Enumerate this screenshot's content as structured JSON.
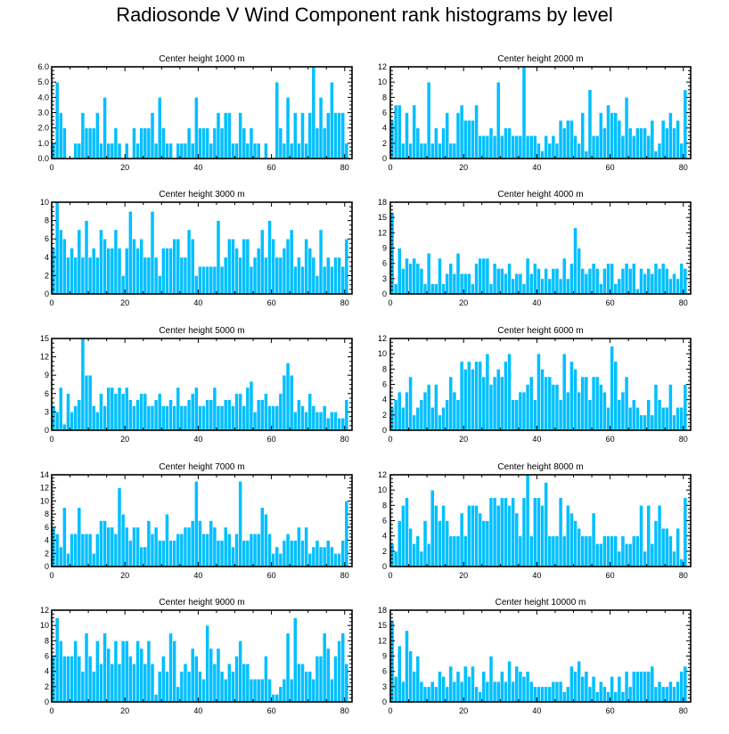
{
  "figure": {
    "title": "Radiosonde V Wind Component rank histograms by level"
  },
  "chart_data": [
    {
      "type": "bar",
      "title": "Center height 1000 m",
      "xlim": [
        0,
        82
      ],
      "ylim": [
        0,
        6
      ],
      "xticks": [
        "0",
        "20",
        "40",
        "60",
        "80"
      ],
      "yticks": [
        "0.0",
        "1.0",
        "2.0",
        "3.0",
        "4.0",
        "5.0",
        "6.0"
      ],
      "values": [
        1,
        5,
        3,
        2,
        0,
        0,
        1,
        1,
        3,
        2,
        2,
        2,
        3,
        1,
        4,
        1,
        1,
        2,
        1,
        0,
        1,
        0,
        2,
        1,
        2,
        2,
        2,
        3,
        1,
        4,
        2,
        1,
        1,
        0,
        1,
        1,
        1,
        2,
        1,
        4,
        2,
        2,
        2,
        1,
        2,
        3,
        2,
        3,
        3,
        1,
        1,
        3,
        2,
        1,
        2,
        1,
        1,
        0,
        1,
        0,
        0,
        5,
        2,
        1,
        4,
        1,
        3,
        1,
        3,
        1,
        3,
        6,
        2,
        4,
        2,
        3,
        5,
        3,
        3,
        3,
        1
      ]
    },
    {
      "type": "bar",
      "title": "Center height 2000 m",
      "xlim": [
        0,
        82
      ],
      "ylim": [
        0,
        12
      ],
      "xticks": [
        "0",
        "20",
        "40",
        "60",
        "80"
      ],
      "yticks": [
        "0",
        "2",
        "4",
        "6",
        "8",
        "10",
        "12"
      ],
      "values": [
        5,
        7,
        7,
        2,
        6,
        2,
        7,
        4,
        2,
        2,
        10,
        2,
        4,
        2,
        4,
        6,
        2,
        2,
        6,
        7,
        5,
        5,
        5,
        7,
        3,
        3,
        3,
        4,
        3,
        10,
        3,
        4,
        4,
        3,
        3,
        3,
        12,
        3,
        3,
        3,
        2,
        1,
        3,
        2,
        3,
        2,
        5,
        4,
        5,
        5,
        3,
        2,
        6,
        1,
        9,
        3,
        3,
        6,
        4,
        7,
        6,
        6,
        5,
        3,
        8,
        4,
        3,
        4,
        4,
        4,
        3,
        5,
        1,
        2,
        5,
        4,
        6,
        4,
        5,
        2,
        9
      ]
    },
    {
      "type": "bar",
      "title": "Center height 3000 m",
      "xlim": [
        0,
        82
      ],
      "ylim": [
        0,
        10
      ],
      "xticks": [
        "0",
        "20",
        "40",
        "60",
        "80"
      ],
      "yticks": [
        "0",
        "2",
        "4",
        "6",
        "8",
        "10"
      ],
      "values": [
        5,
        10,
        7,
        6,
        4,
        5,
        4,
        7,
        4,
        8,
        4,
        5,
        4,
        7,
        6,
        5,
        5,
        7,
        5,
        2,
        5,
        9,
        6,
        5,
        6,
        4,
        4,
        9,
        4,
        2,
        5,
        5,
        5,
        6,
        6,
        4,
        4,
        7,
        6,
        2,
        3,
        3,
        3,
        3,
        3,
        8,
        3,
        4,
        6,
        6,
        5,
        4,
        6,
        6,
        3,
        4,
        5,
        7,
        4,
        8,
        6,
        4,
        4,
        5,
        6,
        7,
        3,
        4,
        3,
        6,
        5,
        4,
        2,
        7,
        3,
        4,
        3,
        4,
        4,
        3,
        6
      ]
    },
    {
      "type": "bar",
      "title": "Center height 4000 m",
      "xlim": [
        0,
        82
      ],
      "ylim": [
        0,
        18
      ],
      "xticks": [
        "0",
        "20",
        "40",
        "60",
        "80"
      ],
      "yticks": [
        "0",
        "3",
        "6",
        "9",
        "12",
        "15",
        "18"
      ],
      "values": [
        16,
        2,
        9,
        5,
        7,
        6,
        7,
        6,
        5,
        2,
        8,
        2,
        2,
        7,
        2,
        4,
        6,
        4,
        8,
        4,
        4,
        4,
        2,
        6,
        7,
        7,
        7,
        2,
        6,
        5,
        5,
        4,
        6,
        3,
        4,
        4,
        2,
        7,
        4,
        6,
        5,
        3,
        5,
        3,
        5,
        5,
        3,
        7,
        3,
        6,
        13,
        9,
        5,
        4,
        5,
        6,
        5,
        2,
        5,
        6,
        6,
        2,
        3,
        5,
        6,
        5,
        6,
        1,
        5,
        4,
        5,
        4,
        6,
        5,
        6,
        5,
        3,
        4,
        3,
        6,
        5
      ]
    },
    {
      "type": "bar",
      "title": "Center height 5000 m",
      "xlim": [
        0,
        82
      ],
      "ylim": [
        0,
        15
      ],
      "xticks": [
        "0",
        "20",
        "40",
        "60",
        "80"
      ],
      "yticks": [
        "0",
        "3",
        "6",
        "9",
        "12",
        "15"
      ],
      "values": [
        4,
        3,
        7,
        1,
        6,
        3,
        4,
        5,
        15,
        9,
        9,
        4,
        3,
        6,
        4,
        7,
        7,
        6,
        7,
        6,
        7,
        5,
        4,
        5,
        6,
        6,
        4,
        4,
        5,
        6,
        4,
        4,
        5,
        4,
        7,
        4,
        4,
        5,
        6,
        7,
        4,
        4,
        5,
        5,
        7,
        4,
        4,
        5,
        5,
        4,
        6,
        6,
        4,
        7,
        8,
        3,
        5,
        5,
        6,
        4,
        4,
        4,
        6,
        9,
        11,
        9,
        3,
        5,
        4,
        3,
        6,
        4,
        3,
        3,
        4,
        2,
        3,
        3,
        2,
        2,
        5
      ]
    },
    {
      "type": "bar",
      "title": "Center height 6000 m",
      "xlim": [
        0,
        82
      ],
      "ylim": [
        0,
        12
      ],
      "xticks": [
        "0",
        "20",
        "40",
        "60",
        "80"
      ],
      "yticks": [
        "0",
        "2",
        "4",
        "6",
        "8",
        "10",
        "12"
      ],
      "values": [
        3,
        4,
        5,
        3,
        5,
        7,
        2,
        3,
        4,
        5,
        6,
        3,
        6,
        2,
        3,
        4,
        7,
        5,
        4,
        9,
        8,
        9,
        8,
        9,
        9,
        7,
        10,
        6,
        7,
        8,
        7,
        9,
        10,
        4,
        4,
        5,
        5,
        6,
        7,
        4,
        10,
        8,
        7,
        7,
        6,
        6,
        4,
        10,
        5,
        9,
        8,
        5,
        7,
        7,
        4,
        7,
        7,
        6,
        5,
        3,
        11,
        9,
        4,
        5,
        7,
        3,
        4,
        3,
        2,
        2,
        4,
        2,
        6,
        4,
        3,
        3,
        6,
        2,
        3,
        3,
        6
      ]
    },
    {
      "type": "bar",
      "title": "Center height 7000 m",
      "xlim": [
        0,
        82
      ],
      "ylim": [
        0,
        14
      ],
      "xticks": [
        "0",
        "20",
        "40",
        "60",
        "80"
      ],
      "yticks": [
        "0",
        "2",
        "4",
        "6",
        "8",
        "10",
        "12",
        "14"
      ],
      "values": [
        6,
        5,
        3,
        9,
        2,
        5,
        5,
        9,
        5,
        5,
        5,
        2,
        5,
        7,
        7,
        6,
        6,
        5,
        12,
        8,
        6,
        4,
        6,
        6,
        3,
        3,
        7,
        5,
        6,
        4,
        4,
        8,
        4,
        4,
        5,
        5,
        6,
        6,
        7,
        13,
        7,
        5,
        5,
        7,
        6,
        4,
        4,
        6,
        5,
        3,
        5,
        13,
        4,
        4,
        5,
        5,
        5,
        9,
        8,
        5,
        2,
        3,
        2,
        4,
        5,
        4,
        4,
        6,
        4,
        6,
        2,
        3,
        4,
        3,
        3,
        4,
        3,
        2,
        2,
        4,
        10
      ]
    },
    {
      "type": "bar",
      "title": "Center height 8000 m",
      "xlim": [
        0,
        82
      ],
      "ylim": [
        0,
        12
      ],
      "xticks": [
        "0",
        "20",
        "40",
        "60",
        "80"
      ],
      "yticks": [
        "0",
        "2",
        "4",
        "6",
        "8",
        "10",
        "12"
      ],
      "values": [
        3,
        2,
        6,
        8,
        9,
        5,
        3,
        4,
        2,
        6,
        3,
        10,
        8,
        6,
        8,
        6,
        4,
        4,
        4,
        7,
        4,
        8,
        8,
        8,
        7,
        6,
        6,
        9,
        9,
        8,
        9,
        9,
        8,
        9,
        7,
        4,
        9,
        12,
        4,
        9,
        9,
        8,
        11,
        4,
        4,
        4,
        9,
        4,
        8,
        7,
        6,
        5,
        4,
        4,
        4,
        7,
        3,
        3,
        4,
        4,
        4,
        4,
        2,
        4,
        3,
        3,
        4,
        4,
        8,
        2,
        8,
        3,
        6,
        8,
        5,
        5,
        4,
        2,
        5,
        1,
        9
      ]
    },
    {
      "type": "bar",
      "title": "Center height 9000 m",
      "xlim": [
        0,
        82
      ],
      "ylim": [
        0,
        12
      ],
      "xticks": [
        "0",
        "20",
        "40",
        "60",
        "80"
      ],
      "yticks": [
        "0",
        "2",
        "4",
        "6",
        "8",
        "10",
        "12"
      ],
      "values": [
        6,
        11,
        8,
        6,
        6,
        6,
        8,
        6,
        4,
        9,
        6,
        4,
        8,
        5,
        9,
        7,
        5,
        8,
        5,
        8,
        8,
        6,
        5,
        8,
        7,
        5,
        8,
        5,
        1,
        4,
        6,
        4,
        9,
        8,
        2,
        4,
        5,
        4,
        7,
        6,
        4,
        3,
        10,
        7,
        5,
        7,
        4,
        3,
        5,
        4,
        6,
        8,
        5,
        5,
        3,
        3,
        3,
        3,
        6,
        3,
        1,
        1,
        2,
        3,
        9,
        3,
        11,
        5,
        5,
        4,
        4,
        3,
        6,
        6,
        9,
        7,
        3,
        6,
        8,
        9,
        5
      ]
    },
    {
      "type": "bar",
      "title": "Center height 10000 m",
      "xlim": [
        0,
        82
      ],
      "ylim": [
        0,
        18
      ],
      "xticks": [
        "0",
        "20",
        "40",
        "60",
        "80"
      ],
      "yticks": [
        "0",
        "3",
        "6",
        "9",
        "12",
        "15",
        "18"
      ],
      "values": [
        16,
        5,
        11,
        4,
        14,
        10,
        6,
        9,
        4,
        3,
        3,
        4,
        3,
        6,
        5,
        3,
        7,
        4,
        6,
        4,
        7,
        5,
        7,
        3,
        2,
        6,
        4,
        9,
        4,
        4,
        6,
        4,
        8,
        4,
        7,
        6,
        5,
        6,
        4,
        3,
        3,
        3,
        3,
        3,
        4,
        4,
        4,
        2,
        3,
        7,
        6,
        8,
        5,
        6,
        3,
        5,
        2,
        4,
        3,
        2,
        5,
        2,
        5,
        2,
        6,
        3,
        6,
        6,
        6,
        6,
        6,
        7,
        3,
        4,
        3,
        3,
        4,
        3,
        4,
        6,
        7
      ]
    }
  ]
}
